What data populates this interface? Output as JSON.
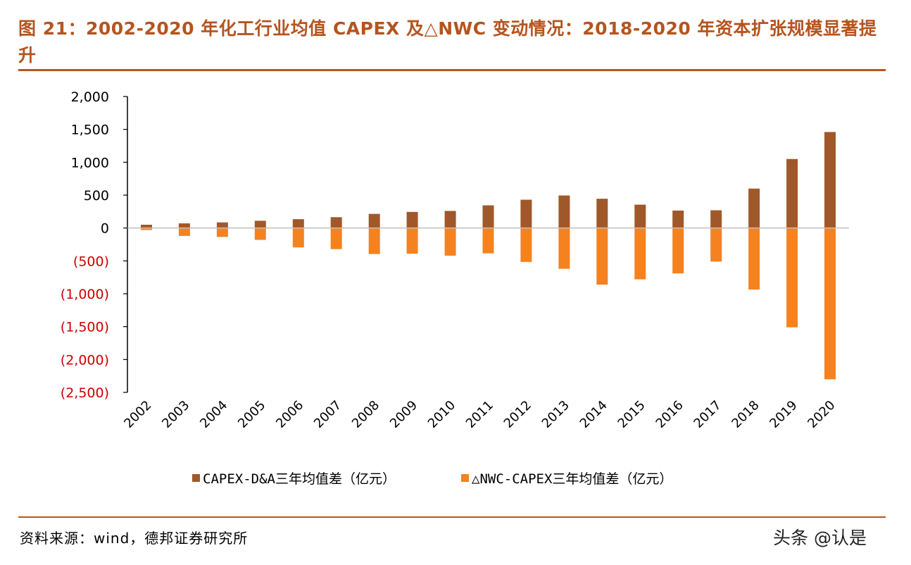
{
  "title": "图 21：2002-2020 年化工行业均值 CAPEX 及△NWC 变动情况：2018-2020 年资本扩张规模显著提升",
  "source": "资料来源：wind，德邦证券研究所",
  "watermark": "头条 @认是",
  "colors": {
    "title": "#B5541E",
    "series1": "#A0582A",
    "series2": "#F5821F",
    "negative_tick": "#CC0000",
    "axis": "#000000"
  },
  "chart_data": {
    "type": "bar",
    "categories": [
      "2002",
      "2003",
      "2004",
      "2005",
      "2006",
      "2007",
      "2008",
      "2009",
      "2010",
      "2011",
      "2012",
      "2013",
      "2014",
      "2015",
      "2016",
      "2017",
      "2018",
      "2019",
      "2020"
    ],
    "series": [
      {
        "name": "CAPEX-D&A三年均值差（亿元）",
        "values": [
          50,
          70,
          85,
          110,
          135,
          165,
          215,
          245,
          260,
          345,
          430,
          495,
          445,
          355,
          265,
          270,
          600,
          1050,
          1460
        ]
      },
      {
        "name": "△NWC-CAPEX三年均值差（亿元）",
        "values": [
          -30,
          -120,
          -135,
          -180,
          -295,
          -320,
          -395,
          -390,
          -420,
          -385,
          -515,
          -620,
          -860,
          -780,
          -690,
          -510,
          -935,
          -1510,
          -2300
        ]
      }
    ],
    "ylim": [
      -2500,
      2000
    ],
    "yticks": [
      2000,
      1500,
      1000,
      500,
      0,
      -500,
      -1000,
      -1500,
      -2000,
      -2500
    ],
    "ytick_labels": [
      "2,000",
      "1,500",
      "1,000",
      "500",
      "0",
      "(500)",
      "(1,000)",
      "(1,500)",
      "(2,000)",
      "(2,500)"
    ],
    "legend_position": "bottom",
    "grid": false
  }
}
